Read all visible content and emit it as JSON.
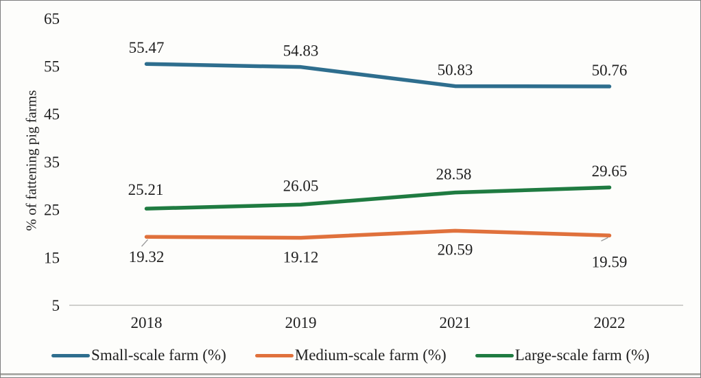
{
  "chart_data": {
    "type": "line",
    "title": "",
    "xlabel": "",
    "ylabel": "% of fattening pig farms",
    "categories": [
      "2018",
      "2019",
      "2021",
      "2022"
    ],
    "yticks": [
      65,
      55,
      45,
      35,
      25,
      15,
      5
    ],
    "ylim": [
      5,
      65
    ],
    "grid": false,
    "legend_position": "bottom",
    "axis_color": "#c0c0bc",
    "label_color": "#1f1f1f",
    "leader_color": "#999999",
    "series": [
      {
        "name": "Small-scale farm (%)",
        "key": "small-scale",
        "color": "#2E6E8E",
        "values": [
          55.47,
          54.83,
          50.83,
          50.76
        ],
        "labels": [
          {
            "text": "55.47",
            "dx": 0,
            "dy": -16
          },
          {
            "text": "54.83",
            "dx": 0,
            "dy": -16
          },
          {
            "text": "50.83",
            "dx": 0,
            "dy": -16
          },
          {
            "text": "50.76",
            "dx": 0,
            "dy": -16
          }
        ]
      },
      {
        "name": "Medium-scale farm (%)",
        "key": "medium-scale",
        "color": "#E0713C",
        "values": [
          19.32,
          19.12,
          20.59,
          19.59
        ],
        "labels": [
          {
            "text": "19.32",
            "dx": 0,
            "dy": 37,
            "leader": {
              "x1": 2,
              "y1": 4,
              "x2": -7,
              "y2": 14
            }
          },
          {
            "text": "19.12",
            "dx": 0,
            "dy": 36
          },
          {
            "text": "20.59",
            "dx": 0,
            "dy": 35
          },
          {
            "text": "19.59",
            "dx": 0,
            "dy": 46,
            "leader": {
              "x1": -2,
              "y1": 3,
              "x2": -12,
              "y2": 8
            }
          }
        ]
      },
      {
        "name": "Large-scale farm (%)",
        "key": "large-scale",
        "color": "#1F7B41",
        "values": [
          25.21,
          26.05,
          28.58,
          29.65
        ],
        "labels": [
          {
            "text": "25.21",
            "dx": -1,
            "dy": -20
          },
          {
            "text": "26.05",
            "dx": 0,
            "dy": -20
          },
          {
            "text": "28.58",
            "dx": -2,
            "dy": -19
          },
          {
            "text": "29.65",
            "dx": 0,
            "dy": -16
          }
        ]
      }
    ]
  }
}
